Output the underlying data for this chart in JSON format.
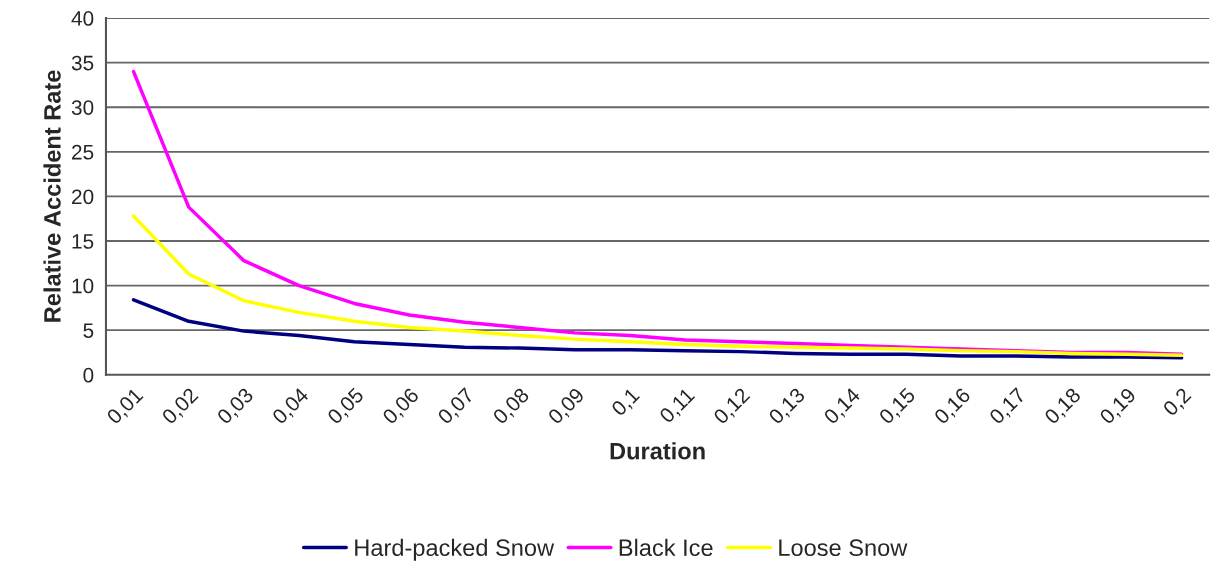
{
  "chart_data": {
    "type": "line",
    "xlabel": "Duration",
    "ylabel": "Relative Accident Rate",
    "categories": [
      "0,01",
      "0,02",
      "0,03",
      "0,04",
      "0,05",
      "0,06",
      "0,07",
      "0,08",
      "0,09",
      "0,1",
      "0,11",
      "0,12",
      "0,13",
      "0,14",
      "0,15",
      "0,16",
      "0,17",
      "0,18",
      "0,19",
      "0,2"
    ],
    "series": [
      {
        "name": "Hard-packed Snow",
        "color": "#000080",
        "values": [
          8.4,
          6.0,
          4.9,
          4.4,
          3.7,
          3.4,
          3.1,
          3.0,
          2.8,
          2.8,
          2.7,
          2.6,
          2.4,
          2.3,
          2.3,
          2.1,
          2.1,
          2.0,
          2.0,
          1.9
        ]
      },
      {
        "name": "Black Ice",
        "color": "#ff00ff",
        "values": [
          34,
          18.8,
          12.8,
          10.0,
          8.0,
          6.7,
          5.9,
          5.3,
          4.7,
          4.4,
          3.9,
          3.7,
          3.5,
          3.3,
          3.1,
          2.9,
          2.7,
          2.5,
          2.5,
          2.3
        ]
      },
      {
        "name": "Loose Snow",
        "color": "#ffff00",
        "values": [
          17.8,
          11.3,
          8.3,
          7.0,
          6.0,
          5.3,
          4.9,
          4.4,
          4.0,
          3.7,
          3.4,
          3.2,
          3.1,
          3.0,
          2.9,
          2.7,
          2.6,
          2.4,
          2.3,
          2.2
        ]
      }
    ],
    "ylim": [
      0,
      40
    ],
    "yticks": [
      0,
      5,
      10,
      15,
      20,
      25,
      30,
      35,
      40
    ],
    "grid": "y",
    "legend": "bottom",
    "marker": "none",
    "line_style": "solid"
  }
}
